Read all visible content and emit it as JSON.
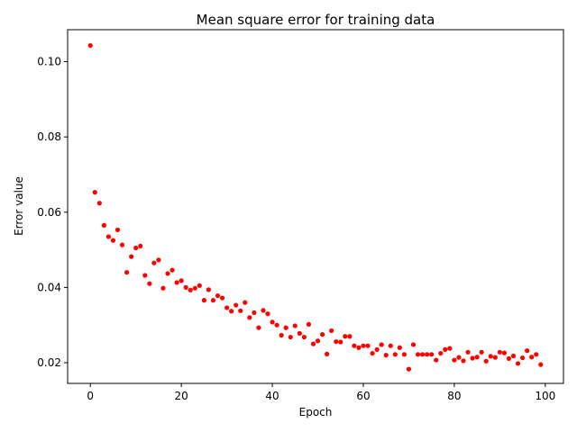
{
  "chart_data": {
    "type": "scatter",
    "title": "Mean square error for training data",
    "xlabel": "Epoch",
    "ylabel": "Error value",
    "xlim": [
      -5,
      104
    ],
    "ylim": [
      0.0145,
      0.1085
    ],
    "xticks": [
      0,
      20,
      40,
      60,
      80,
      100
    ],
    "xtick_labels": [
      "0",
      "20",
      "40",
      "60",
      "80",
      "100"
    ],
    "yticks": [
      0.02,
      0.04,
      0.06,
      0.08,
      0.1
    ],
    "ytick_labels": [
      "0.02",
      "0.04",
      "0.06",
      "0.08",
      "0.10"
    ],
    "grid": false,
    "legend": "none",
    "marker_color": "#ff0000",
    "x": [
      0,
      1,
      2,
      3,
      4,
      5,
      6,
      7,
      8,
      9,
      10,
      11,
      12,
      13,
      14,
      15,
      16,
      17,
      18,
      19,
      20,
      21,
      22,
      23,
      24,
      25,
      26,
      27,
      28,
      29,
      30,
      31,
      32,
      33,
      34,
      35,
      36,
      37,
      38,
      39,
      40,
      41,
      42,
      43,
      44,
      45,
      46,
      47,
      48,
      49,
      50,
      51,
      52,
      53,
      54,
      55,
      56,
      57,
      58,
      59,
      60,
      61,
      62,
      63,
      64,
      65,
      66,
      67,
      68,
      69,
      70,
      71,
      72,
      73,
      74,
      75,
      76,
      77,
      78,
      79,
      80,
      81,
      82,
      83,
      84,
      85,
      86,
      87,
      88,
      89,
      90,
      91,
      92,
      93,
      94,
      95,
      96,
      97,
      98,
      99
    ],
    "y": [
      0.1043,
      0.0653,
      0.0624,
      0.0565,
      0.0535,
      0.0525,
      0.0553,
      0.0513,
      0.044,
      0.0482,
      0.0505,
      0.051,
      0.0432,
      0.041,
      0.0465,
      0.0473,
      0.0398,
      0.0437,
      0.0446,
      0.0413,
      0.0418,
      0.04,
      0.0393,
      0.0398,
      0.0405,
      0.0366,
      0.0394,
      0.0366,
      0.0378,
      0.0372,
      0.0346,
      0.0337,
      0.0353,
      0.0338,
      0.036,
      0.032,
      0.0333,
      0.0293,
      0.0339,
      0.033,
      0.0308,
      0.03,
      0.0273,
      0.0293,
      0.0268,
      0.0298,
      0.0278,
      0.0268,
      0.0302,
      0.025,
      0.0258,
      0.0275,
      0.0223,
      0.0285,
      0.0256,
      0.0255,
      0.027,
      0.027,
      0.0245,
      0.024,
      0.0245,
      0.0245,
      0.0225,
      0.0235,
      0.0248,
      0.022,
      0.0245,
      0.0222,
      0.024,
      0.0222,
      0.0183,
      0.0248,
      0.0222,
      0.0222,
      0.0222,
      0.0222,
      0.0207,
      0.0225,
      0.0235,
      0.0238,
      0.0207,
      0.0214,
      0.0205,
      0.0228,
      0.0212,
      0.0215,
      0.0228,
      0.0204,
      0.0217,
      0.0214,
      0.0228,
      0.0226,
      0.0211,
      0.0218,
      0.0198,
      0.0213,
      0.0232,
      0.0215,
      0.0222,
      0.0195
    ]
  }
}
